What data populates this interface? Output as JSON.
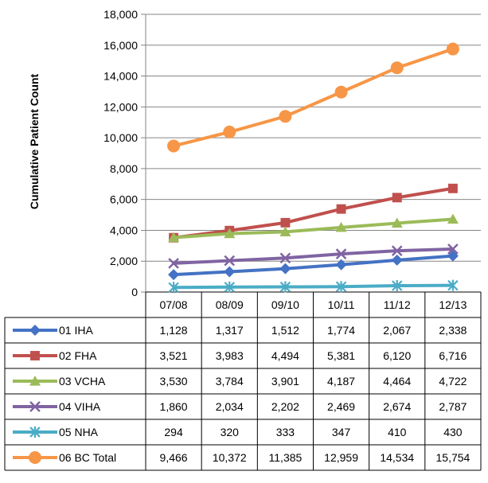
{
  "chart_data": {
    "type": "line",
    "title": "",
    "xlabel": "",
    "ylabel": "Cumulative Patient Count",
    "ylim": [
      0,
      18000
    ],
    "yticks": [
      "0",
      "2,000",
      "4,000",
      "6,000",
      "8,000",
      "10,000",
      "12,000",
      "14,000",
      "16,000",
      "18,000"
    ],
    "categories": [
      "07/08",
      "08/09",
      "09/10",
      "10/11",
      "11/12",
      "12/13"
    ],
    "grid": true,
    "legend": "data-table",
    "series": [
      {
        "name": "01 IHA",
        "color": "#4472C4",
        "marker": "diamond",
        "values": [
          1128,
          1317,
          1512,
          1774,
          2067,
          2338
        ],
        "labels": [
          "1,128",
          "1,317",
          "1,512",
          "1,774",
          "2,067",
          "2,338"
        ]
      },
      {
        "name": "02 FHA",
        "color": "#C0504D",
        "marker": "square",
        "values": [
          3521,
          3983,
          4494,
          5381,
          6120,
          6716
        ],
        "labels": [
          "3,521",
          "3,983",
          "4,494",
          "5,381",
          "6,120",
          "6,716"
        ]
      },
      {
        "name": "03 VCHA",
        "color": "#9BBB59",
        "marker": "triangle",
        "values": [
          3530,
          3784,
          3901,
          4187,
          4464,
          4722
        ],
        "labels": [
          "3,530",
          "3,784",
          "3,901",
          "4,187",
          "4,464",
          "4,722"
        ]
      },
      {
        "name": "04 VIHA",
        "color": "#8064A2",
        "marker": "x",
        "values": [
          1860,
          2034,
          2202,
          2469,
          2674,
          2787
        ],
        "labels": [
          "1,860",
          "2,034",
          "2,202",
          "2,469",
          "2,674",
          "2,787"
        ]
      },
      {
        "name": "05 NHA",
        "color": "#4BACC6",
        "marker": "star",
        "values": [
          294,
          320,
          333,
          347,
          410,
          430
        ],
        "labels": [
          "294",
          "320",
          "333",
          "347",
          "410",
          "430"
        ]
      },
      {
        "name": "06 BC Total",
        "color": "#F79646",
        "marker": "circle",
        "values": [
          9466,
          10372,
          11385,
          12959,
          14534,
          15754
        ],
        "labels": [
          "9,466",
          "10,372",
          "11,385",
          "12,959",
          "14,534",
          "15,754"
        ]
      }
    ]
  }
}
